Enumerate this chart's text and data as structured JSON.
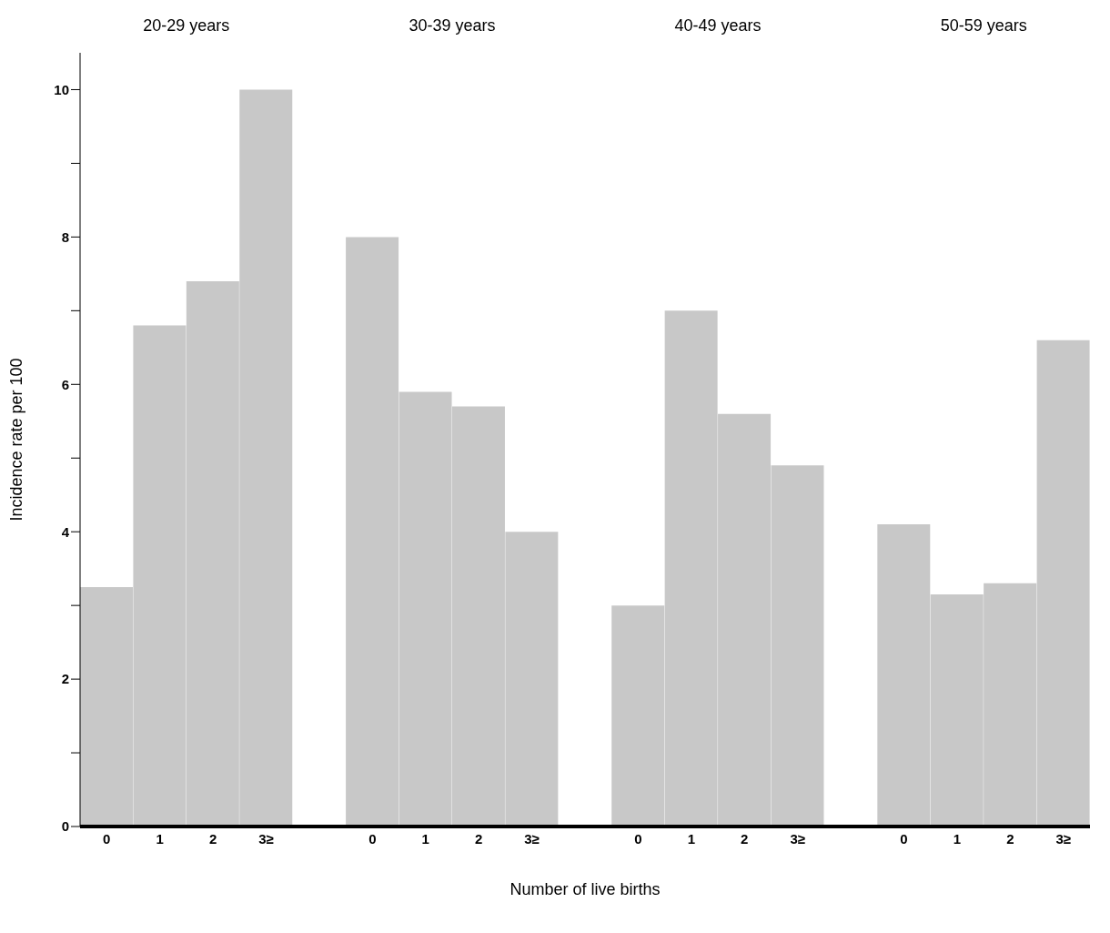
{
  "chart_data": {
    "type": "bar",
    "xlabel": "Number of live births",
    "ylabel": "Incidence rate per 100",
    "annotations": [
      "20-29 years",
      "30-39 years",
      "40-49 years",
      "50-59 years"
    ],
    "categories": [
      "0",
      "1",
      "2",
      "3≥",
      null,
      "0",
      "1",
      "2",
      "3≥",
      null,
      "0",
      "1",
      "2",
      "3≥",
      null,
      "0",
      "1",
      "2",
      "3≥"
    ],
    "values": [
      3.25,
      6.8,
      7.4,
      10,
      null,
      8.0,
      5.9,
      5.7,
      4.0,
      null,
      3.0,
      7.0,
      5.6,
      4.9,
      null,
      4.1,
      3.15,
      3.3,
      6.6
    ],
    "color": "#c8c8c8",
    "ylim": [
      0,
      10.5
    ],
    "yticks": [
      0,
      {
        "value": 1,
        "label": null
      },
      2,
      {
        "value": 3,
        "label": null
      },
      4,
      {
        "value": 5,
        "label": null
      },
      6,
      {
        "value": 7,
        "label": null
      },
      8,
      {
        "value": 9,
        "label": null
      },
      10
    ],
    "grid": false,
    "legend": false
  }
}
